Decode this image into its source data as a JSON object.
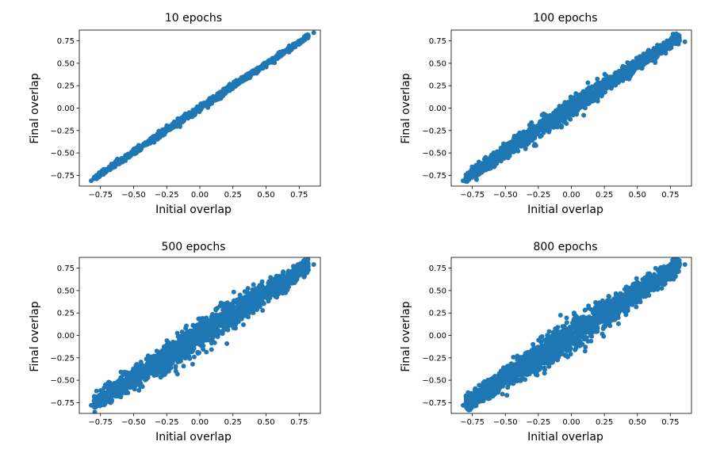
{
  "chart_data": [
    {
      "type": "scatter",
      "title": "10 epochs",
      "xlabel": "Initial overlap",
      "ylabel": "Final overlap",
      "xlim": [
        -0.91,
        0.91
      ],
      "ylim": [
        -0.87,
        0.87
      ],
      "xticks": [
        -0.75,
        -0.5,
        -0.25,
        0.0,
        0.25,
        0.5,
        0.75
      ],
      "xtick_labels": [
        "−0.75",
        "−0.50",
        "−0.25",
        "0.00",
        "0.25",
        "0.50",
        "0.75"
      ],
      "yticks": [
        -0.75,
        -0.5,
        -0.25,
        0.0,
        0.25,
        0.5,
        0.75
      ],
      "ytick_labels": [
        "−0.75",
        "−0.50",
        "−0.25",
        "0.00",
        "0.25",
        "0.50",
        "0.75"
      ],
      "color": "#1f77b4",
      "point_cloud": {
        "slope": 0.98,
        "spread_center": 0.035,
        "spread_end": 0.02,
        "x_range": [
          -0.8,
          0.82
        ],
        "points": 900
      },
      "series": [
        {
          "x": [
            -0.82,
            -0.78,
            -0.76,
            -0.7,
            0.0,
            0.8,
            0.86
          ],
          "y": [
            -0.81,
            -0.75,
            -0.72,
            -0.68,
            0.0,
            0.81,
            0.84
          ]
        }
      ]
    },
    {
      "type": "scatter",
      "title": "100 epochs",
      "xlabel": "Initial overlap",
      "ylabel": "Final overlap",
      "xlim": [
        -0.91,
        0.91
      ],
      "ylim": [
        -0.87,
        0.87
      ],
      "xticks": [
        -0.75,
        -0.5,
        -0.25,
        0.0,
        0.25,
        0.5,
        0.75
      ],
      "xtick_labels": [
        "−0.75",
        "−0.50",
        "−0.25",
        "0.00",
        "0.25",
        "0.50",
        "0.75"
      ],
      "yticks": [
        -0.75,
        -0.5,
        -0.25,
        0.0,
        0.25,
        0.5,
        0.75
      ],
      "ytick_labels": [
        "−0.75",
        "−0.50",
        "−0.25",
        "0.00",
        "0.25",
        "0.50",
        "0.75"
      ],
      "color": "#1f77b4",
      "point_cloud": {
        "slope": 0.97,
        "spread_center": 0.11,
        "spread_end": 0.05,
        "x_range": [
          -0.8,
          0.82
        ],
        "points": 1500
      },
      "series": [
        {
          "x": [
            -0.82,
            -0.76,
            -0.72,
            0.0,
            0.78,
            0.86
          ],
          "y": [
            -0.81,
            -0.75,
            -0.7,
            0.0,
            0.82,
            0.74
          ]
        }
      ]
    },
    {
      "type": "scatter",
      "title": "500 epochs",
      "xlabel": "Initial overlap",
      "ylabel": "Final overlap",
      "xlim": [
        -0.91,
        0.91
      ],
      "ylim": [
        -0.87,
        0.87
      ],
      "xticks": [
        -0.75,
        -0.5,
        -0.25,
        0.0,
        0.25,
        0.5,
        0.75
      ],
      "xtick_labels": [
        "−0.75",
        "−0.50",
        "−0.25",
        "0.00",
        "0.25",
        "0.50",
        "0.75"
      ],
      "yticks": [
        -0.75,
        -0.5,
        -0.25,
        0.0,
        0.25,
        0.5,
        0.75
      ],
      "ytick_labels": [
        "−0.75",
        "−0.50",
        "−0.25",
        "0.00",
        "0.25",
        "0.50",
        "0.75"
      ],
      "color": "#1f77b4",
      "point_cloud": {
        "slope": 0.95,
        "spread_center": 0.17,
        "spread_end": 0.07,
        "x_range": [
          -0.8,
          0.82
        ],
        "points": 2000
      },
      "series": [
        {
          "x": [
            -0.82,
            -0.78,
            -0.74,
            0.0,
            0.79,
            0.86
          ],
          "y": [
            -0.78,
            -0.62,
            -0.74,
            0.0,
            0.84,
            0.79
          ]
        }
      ]
    },
    {
      "type": "scatter",
      "title": "800 epochs",
      "xlabel": "Initial overlap",
      "ylabel": "Final overlap",
      "xlim": [
        -0.91,
        0.91
      ],
      "ylim": [
        -0.87,
        0.87
      ],
      "xticks": [
        -0.75,
        -0.5,
        -0.25,
        0.0,
        0.25,
        0.5,
        0.75
      ],
      "xtick_labels": [
        "−0.75",
        "−0.50",
        "−0.25",
        "0.00",
        "0.25",
        "0.50",
        "0.75"
      ],
      "yticks": [
        -0.75,
        -0.5,
        -0.25,
        0.0,
        0.25,
        0.5,
        0.75
      ],
      "ytick_labels": [
        "−0.75",
        "−0.50",
        "−0.25",
        "0.00",
        "0.25",
        "0.50",
        "0.75"
      ],
      "color": "#1f77b4",
      "point_cloud": {
        "slope": 0.95,
        "spread_center": 0.18,
        "spread_end": 0.07,
        "x_range": [
          -0.8,
          0.82
        ],
        "points": 2000
      },
      "series": [
        {
          "x": [
            -0.82,
            -0.78,
            -0.74,
            0.0,
            0.8,
            0.86
          ],
          "y": [
            -0.78,
            -0.64,
            -0.75,
            0.0,
            0.84,
            0.79
          ]
        }
      ]
    }
  ]
}
